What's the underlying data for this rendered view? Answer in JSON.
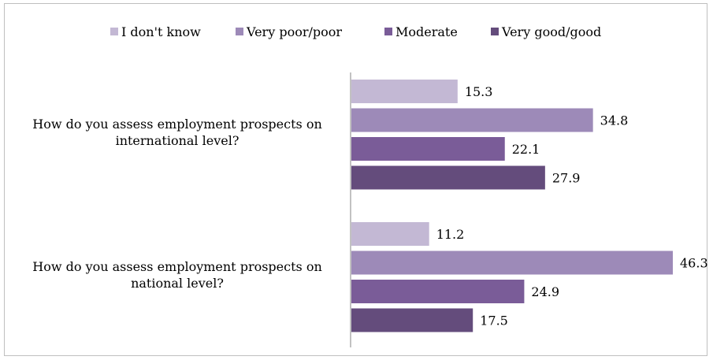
{
  "chart_data": {
    "type": "bar",
    "orientation": "horizontal",
    "legend_position": "top",
    "grid": false,
    "categories": [
      "How do you assess employment prospects on international level?",
      "How do you assess employment prospects on national level?"
    ],
    "category_lines": [
      [
        "How do you assess employment prospects on",
        "international level?"
      ],
      [
        "How do you assess employment prospects on",
        "national level?"
      ]
    ],
    "series": [
      {
        "name": "I don't know",
        "color": "#c3b8d4",
        "values": [
          15.3,
          11.2
        ]
      },
      {
        "name": "Very poor/poor",
        "color": "#9d8ab8",
        "values": [
          34.8,
          46.3
        ]
      },
      {
        "name": "Moderate",
        "color": "#7a5c98",
        "values": [
          22.1,
          24.9
        ]
      },
      {
        "name": "Very good/good",
        "color": "#644c7c",
        "values": [
          27.9,
          17.5
        ]
      }
    ],
    "xlim": [
      0,
      46.3
    ]
  }
}
